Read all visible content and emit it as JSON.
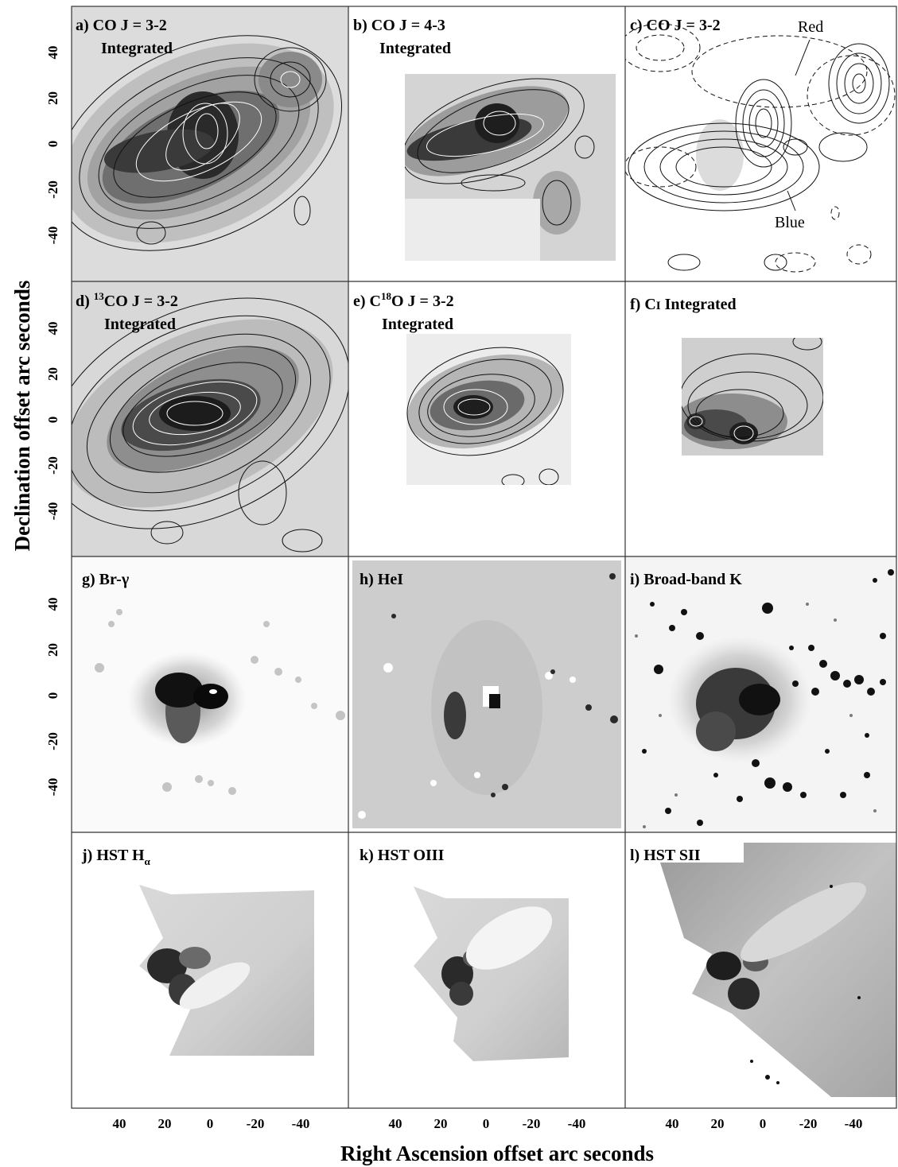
{
  "axes": {
    "xlabel": "Right Ascension offset arc seconds",
    "ylabel": "Declination offset arc seconds",
    "x_ticks": [
      "40",
      "20",
      "0",
      "-20",
      "-40"
    ],
    "y_ticks": [
      "40",
      "20",
      "0",
      "-20",
      "-40"
    ]
  },
  "panels": [
    {
      "letter": "a)",
      "line1": "CO J = 3-2",
      "line2": "Integrated"
    },
    {
      "letter": "b)",
      "line1": "CO J = 4-3",
      "line2": "Integrated"
    },
    {
      "letter": "c)",
      "line1": "CO J = 3-2",
      "line2": "",
      "red": "Red",
      "blue": "Blue"
    },
    {
      "letter": "d)",
      "sup": "13",
      "line1": "CO J = 3-2",
      "line2": "Integrated"
    },
    {
      "letter": "e)",
      "pre": "C",
      "sup": "18",
      "line1": "O J = 3-2",
      "line2": "Integrated"
    },
    {
      "letter": "f)",
      "line1": "C",
      "line1b": "I",
      "line1c": "Integrated"
    },
    {
      "letter": "g)",
      "line1": "Br-",
      "greek": "γ"
    },
    {
      "letter": "h)",
      "line1": "HeI"
    },
    {
      "letter": "i)",
      "line1": "Broad-band K"
    },
    {
      "letter": "j)",
      "line1": "HST H",
      "sub": "α"
    },
    {
      "letter": "k)",
      "line1": "HST OIII"
    },
    {
      "letter": "l)",
      "line1": "HST SII"
    }
  ],
  "colors": {
    "frame": "#333333",
    "dark": "#111111",
    "mid": "#888888",
    "light": "#e6e6e6"
  }
}
